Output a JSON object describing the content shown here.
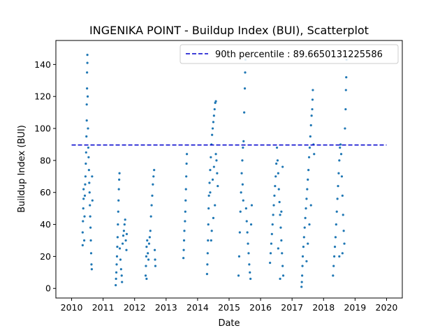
{
  "chart_data": {
    "type": "scatter",
    "title": "INGENIKA POINT - Buildup Index (BUI), Scatterplot",
    "xlabel": "Date",
    "ylabel": "Buildup Index (BUI)",
    "xlim": [
      2009.5,
      2020.5
    ],
    "ylim": [
      -6,
      155
    ],
    "x_ticks": [
      "2010",
      "2011",
      "2012",
      "2013",
      "2014",
      "2015",
      "2016",
      "2017",
      "2018",
      "2019",
      "2020"
    ],
    "y_ticks": [
      0,
      20,
      40,
      60,
      80,
      100,
      120,
      140
    ],
    "grid": false,
    "legend_position": "top-right",
    "marker_color": "#1f77b4",
    "reference_line": {
      "label": "90th percentile : 89.6650131225586",
      "value": 89.6650131225586,
      "x_range": [
        2010.0,
        2020.0
      ],
      "color": "#0000cc",
      "style": "dashed"
    },
    "series": [
      {
        "points": [
          [
            2010.35,
            27
          ],
          [
            2010.35,
            35
          ],
          [
            2010.36,
            42
          ],
          [
            2010.37,
            50
          ],
          [
            2010.38,
            56
          ],
          [
            2010.38,
            62
          ],
          [
            2010.4,
            30
          ],
          [
            2010.41,
            45
          ],
          [
            2010.42,
            58
          ],
          [
            2010.43,
            65
          ],
          [
            2010.44,
            70
          ],
          [
            2010.45,
            78
          ],
          [
            2010.46,
            85
          ],
          [
            2010.47,
            95
          ],
          [
            2010.48,
            105
          ],
          [
            2010.48,
            115
          ],
          [
            2010.49,
            125
          ],
          [
            2010.49,
            135
          ],
          [
            2010.5,
            141
          ],
          [
            2010.5,
            146
          ],
          [
            2010.51,
            120
          ],
          [
            2010.52,
            100
          ],
          [
            2010.53,
            88
          ],
          [
            2010.54,
            82
          ],
          [
            2010.55,
            74
          ],
          [
            2010.56,
            66
          ],
          [
            2010.57,
            60
          ],
          [
            2010.58,
            52
          ],
          [
            2010.59,
            45
          ],
          [
            2010.6,
            38
          ],
          [
            2010.61,
            30
          ],
          [
            2010.62,
            22
          ],
          [
            2010.63,
            15
          ],
          [
            2010.64,
            12
          ],
          [
            2010.65,
            70
          ],
          [
            2010.66,
            55
          ],
          [
            2011.4,
            2
          ],
          [
            2011.41,
            6
          ],
          [
            2011.42,
            10
          ],
          [
            2011.43,
            15
          ],
          [
            2011.44,
            20
          ],
          [
            2011.45,
            26
          ],
          [
            2011.46,
            32
          ],
          [
            2011.47,
            40
          ],
          [
            2011.48,
            48
          ],
          [
            2011.49,
            55
          ],
          [
            2011.5,
            62
          ],
          [
            2011.51,
            68
          ],
          [
            2011.52,
            72
          ],
          [
            2011.53,
            25
          ],
          [
            2011.55,
            18
          ],
          [
            2011.57,
            12
          ],
          [
            2011.59,
            8
          ],
          [
            2011.6,
            4
          ],
          [
            2011.62,
            28
          ],
          [
            2011.64,
            33
          ],
          [
            2011.66,
            36
          ],
          [
            2011.68,
            40
          ],
          [
            2011.7,
            43
          ],
          [
            2011.72,
            30
          ],
          [
            2011.74,
            24
          ],
          [
            2011.75,
            34
          ],
          [
            2012.35,
            8
          ],
          [
            2012.36,
            14
          ],
          [
            2012.37,
            20
          ],
          [
            2012.38,
            26
          ],
          [
            2012.4,
            30
          ],
          [
            2012.42,
            22
          ],
          [
            2012.44,
            18
          ],
          [
            2012.46,
            28
          ],
          [
            2012.48,
            32
          ],
          [
            2012.5,
            36
          ],
          [
            2012.52,
            45
          ],
          [
            2012.54,
            52
          ],
          [
            2012.56,
            58
          ],
          [
            2012.58,
            65
          ],
          [
            2012.6,
            70
          ],
          [
            2012.62,
            74
          ],
          [
            2012.64,
            24
          ],
          [
            2012.65,
            18
          ],
          [
            2012.66,
            14
          ],
          [
            2012.38,
            6
          ],
          [
            2013.55,
            19
          ],
          [
            2013.56,
            24
          ],
          [
            2013.57,
            30
          ],
          [
            2013.58,
            36
          ],
          [
            2013.6,
            42
          ],
          [
            2013.61,
            48
          ],
          [
            2013.62,
            55
          ],
          [
            2013.63,
            62
          ],
          [
            2013.64,
            70
          ],
          [
            2013.65,
            78
          ],
          [
            2013.66,
            84
          ],
          [
            2014.3,
            9
          ],
          [
            2014.31,
            15
          ],
          [
            2014.32,
            22
          ],
          [
            2014.33,
            30
          ],
          [
            2014.34,
            40
          ],
          [
            2014.35,
            50
          ],
          [
            2014.36,
            58
          ],
          [
            2014.38,
            66
          ],
          [
            2014.4,
            74
          ],
          [
            2014.42,
            82
          ],
          [
            2014.44,
            90
          ],
          [
            2014.46,
            96
          ],
          [
            2014.48,
            100
          ],
          [
            2014.5,
            104
          ],
          [
            2014.52,
            108
          ],
          [
            2014.54,
            112
          ],
          [
            2014.56,
            116
          ],
          [
            2014.58,
            117
          ],
          [
            2014.6,
            80
          ],
          [
            2014.62,
            72
          ],
          [
            2014.64,
            64
          ],
          [
            2014.45,
            36
          ],
          [
            2014.5,
            44
          ],
          [
            2014.55,
            52
          ],
          [
            2014.4,
            60
          ],
          [
            2014.48,
            68
          ],
          [
            2014.52,
            76
          ],
          [
            2014.58,
            84
          ],
          [
            2014.43,
            30
          ],
          [
            2015.3,
            8
          ],
          [
            2015.32,
            20
          ],
          [
            2015.34,
            35
          ],
          [
            2015.36,
            48
          ],
          [
            2015.38,
            60
          ],
          [
            2015.4,
            72
          ],
          [
            2015.42,
            80
          ],
          [
            2015.44,
            88
          ],
          [
            2015.46,
            92
          ],
          [
            2015.48,
            110
          ],
          [
            2015.5,
            125
          ],
          [
            2015.51,
            135
          ],
          [
            2015.52,
            143
          ],
          [
            2015.54,
            50
          ],
          [
            2015.56,
            42
          ],
          [
            2015.58,
            35
          ],
          [
            2015.6,
            28
          ],
          [
            2015.62,
            22
          ],
          [
            2015.64,
            15
          ],
          [
            2015.66,
            10
          ],
          [
            2015.68,
            6
          ],
          [
            2015.7,
            40
          ],
          [
            2015.72,
            52
          ],
          [
            2015.45,
            55
          ],
          [
            2015.43,
            65
          ],
          [
            2016.3,
            16
          ],
          [
            2016.32,
            22
          ],
          [
            2016.34,
            28
          ],
          [
            2016.36,
            34
          ],
          [
            2016.38,
            40
          ],
          [
            2016.4,
            46
          ],
          [
            2016.42,
            52
          ],
          [
            2016.44,
            58
          ],
          [
            2016.46,
            64
          ],
          [
            2016.48,
            70
          ],
          [
            2016.5,
            78
          ],
          [
            2016.52,
            88
          ],
          [
            2016.54,
            80
          ],
          [
            2016.56,
            72
          ],
          [
            2016.58,
            62
          ],
          [
            2016.6,
            54
          ],
          [
            2016.62,
            46
          ],
          [
            2016.64,
            38
          ],
          [
            2016.66,
            30
          ],
          [
            2016.68,
            22
          ],
          [
            2016.7,
            14
          ],
          [
            2016.72,
            8
          ],
          [
            2016.62,
            6
          ],
          [
            2016.56,
            25
          ],
          [
            2016.66,
            48
          ],
          [
            2016.7,
            76
          ],
          [
            2017.3,
            1
          ],
          [
            2017.31,
            4
          ],
          [
            2017.32,
            8
          ],
          [
            2017.33,
            14
          ],
          [
            2017.34,
            20
          ],
          [
            2017.36,
            26
          ],
          [
            2017.38,
            32
          ],
          [
            2017.4,
            38
          ],
          [
            2017.42,
            44
          ],
          [
            2017.44,
            50
          ],
          [
            2017.46,
            56
          ],
          [
            2017.48,
            62
          ],
          [
            2017.5,
            68
          ],
          [
            2017.52,
            74
          ],
          [
            2017.54,
            82
          ],
          [
            2017.56,
            88
          ],
          [
            2017.58,
            95
          ],
          [
            2017.6,
            102
          ],
          [
            2017.62,
            108
          ],
          [
            2017.64,
            112
          ],
          [
            2017.65,
            118
          ],
          [
            2017.66,
            124
          ],
          [
            2017.68,
            90
          ],
          [
            2017.7,
            84
          ],
          [
            2017.46,
            17
          ],
          [
            2017.5,
            28
          ],
          [
            2017.55,
            40
          ],
          [
            2017.6,
            52
          ],
          [
            2018.3,
            8
          ],
          [
            2018.32,
            14
          ],
          [
            2018.34,
            20
          ],
          [
            2018.36,
            26
          ],
          [
            2018.38,
            32
          ],
          [
            2018.4,
            40
          ],
          [
            2018.42,
            48
          ],
          [
            2018.44,
            56
          ],
          [
            2018.46,
            64
          ],
          [
            2018.48,
            72
          ],
          [
            2018.5,
            80
          ],
          [
            2018.52,
            88
          ],
          [
            2018.54,
            90
          ],
          [
            2018.56,
            84
          ],
          [
            2018.58,
            70
          ],
          [
            2018.6,
            58
          ],
          [
            2018.62,
            46
          ],
          [
            2018.64,
            36
          ],
          [
            2018.66,
            28
          ],
          [
            2018.68,
            100
          ],
          [
            2018.7,
            112
          ],
          [
            2018.71,
            124
          ],
          [
            2018.72,
            132
          ],
          [
            2018.73,
            143
          ],
          [
            2018.5,
            20
          ],
          [
            2018.6,
            22
          ]
        ]
      }
    ]
  }
}
